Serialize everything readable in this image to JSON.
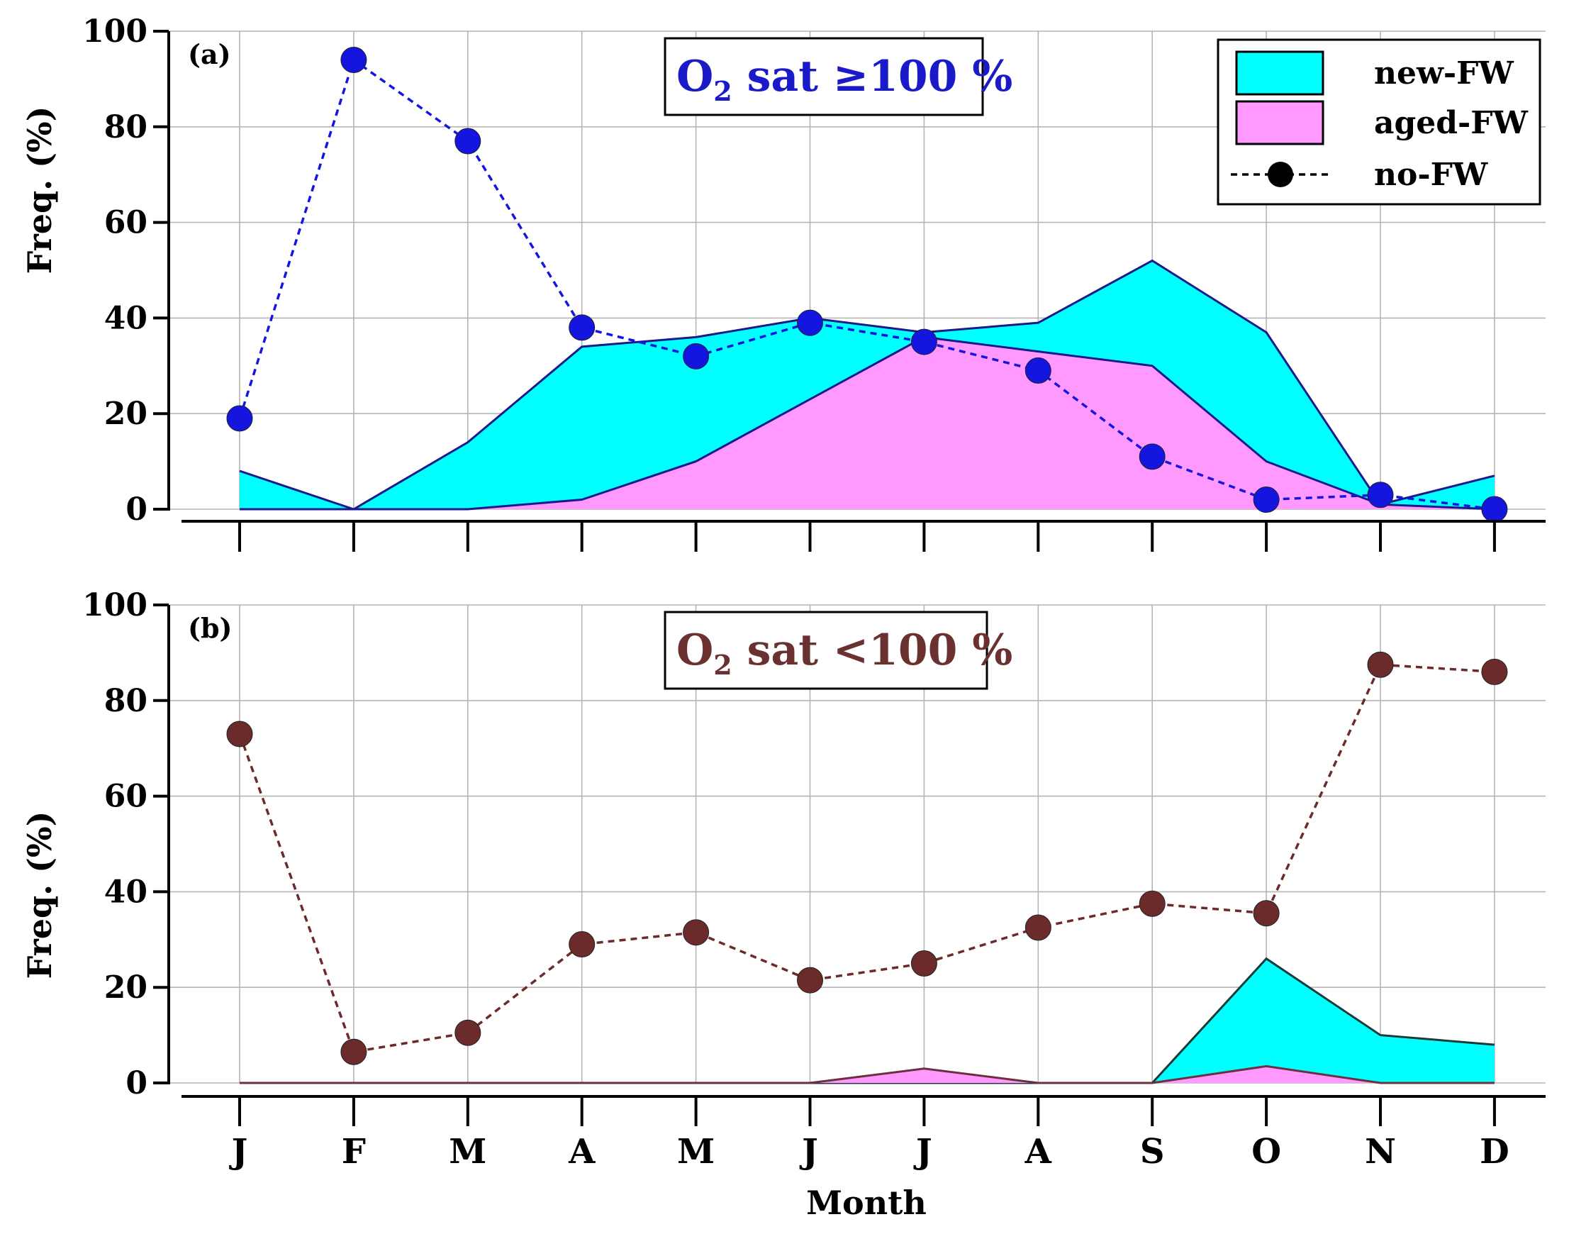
{
  "figure": {
    "xlabel": "Month",
    "legend": {
      "placement": "top-right",
      "entries": [
        {
          "label": "new-FW",
          "swatch": "area",
          "color": "#00FFFF"
        },
        {
          "label": "aged-FW",
          "swatch": "area",
          "color": "#FF99FF"
        },
        {
          "label": "no-FW",
          "swatch": "dashed-marker",
          "color": "#000000"
        }
      ]
    }
  },
  "chart_data": [
    {
      "type": "area",
      "panel": "(a)",
      "annotation": {
        "prefix": "O",
        "sub": "2",
        "suffix": " sat ≥100 %",
        "color": "#1a1ac8"
      },
      "ylabel": "Freq. (%)",
      "ylim": [
        0,
        100
      ],
      "yticks": [
        0,
        20,
        40,
        60,
        80,
        100
      ],
      "categories": [
        "J",
        "F",
        "M",
        "A",
        "M",
        "J",
        "J",
        "A",
        "S",
        "O",
        "N",
        "D"
      ],
      "stacked": false,
      "series": [
        {
          "name": "new-FW",
          "kind": "area",
          "fill": "#00FFFF",
          "stroke": "#1a1a8c",
          "values": [
            8,
            0,
            14,
            34,
            36,
            40,
            37,
            39,
            52,
            37,
            1,
            7
          ]
        },
        {
          "name": "aged-FW",
          "kind": "area",
          "fill": "#FF99FF",
          "stroke": "#1a1a8c",
          "values": [
            0,
            0,
            0,
            2,
            10,
            23,
            36,
            33,
            30,
            10,
            1,
            0
          ]
        },
        {
          "name": "no-FW",
          "kind": "line-dashed-markers",
          "color": "#1515e0",
          "values": [
            19,
            94,
            77,
            38,
            32,
            39,
            35,
            29,
            11,
            2,
            3,
            0
          ]
        }
      ]
    },
    {
      "type": "area",
      "panel": "(b)",
      "annotation": {
        "prefix": "O",
        "sub": "2",
        "suffix": " sat <100 %",
        "color": "#6b3030"
      },
      "ylabel": "Freq. (%)",
      "ylim": [
        0,
        100
      ],
      "yticks": [
        0,
        20,
        40,
        60,
        80,
        100
      ],
      "categories": [
        "J",
        "F",
        "M",
        "A",
        "M",
        "J",
        "J",
        "A",
        "S",
        "O",
        "N",
        "D"
      ],
      "stacked": false,
      "series": [
        {
          "name": "new-FW",
          "kind": "area",
          "fill": "#00FFFF",
          "stroke": "#1a3a3a",
          "values": [
            0,
            0,
            0,
            0,
            0,
            0,
            0,
            0,
            0,
            26,
            10,
            8
          ]
        },
        {
          "name": "aged-FW",
          "kind": "area",
          "fill": "#FF99FF",
          "stroke": "#6b3040",
          "values": [
            0,
            0,
            0,
            0,
            0,
            0,
            3,
            0,
            0,
            3.5,
            0,
            0
          ]
        },
        {
          "name": "no-FW",
          "kind": "line-dashed-markers",
          "color": "#6b2b2b",
          "values": [
            73,
            6.5,
            10.5,
            29,
            31.5,
            21.5,
            25,
            32.5,
            37.5,
            35.5,
            87.5,
            86
          ]
        }
      ]
    }
  ]
}
